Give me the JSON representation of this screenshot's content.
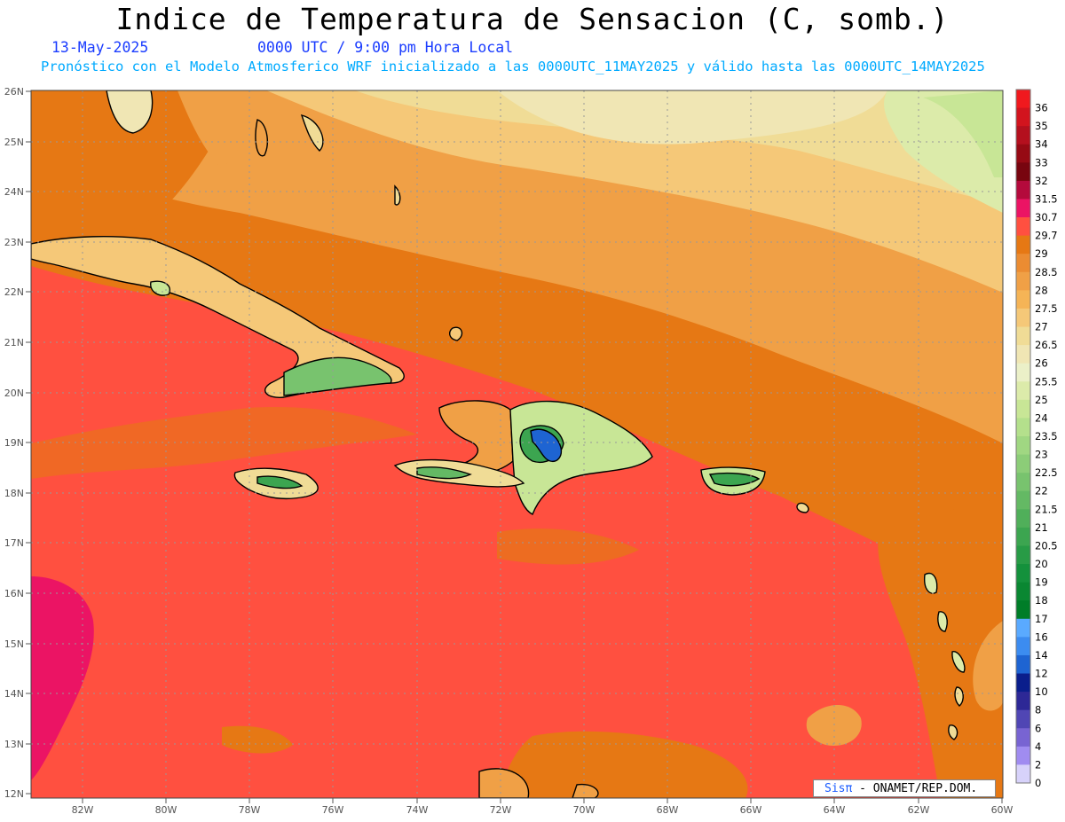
{
  "title": "Indice de Temperatura de Sensacion (C, somb.)",
  "date": "13-May-2025",
  "time": "0000 UTC / 9:00 pm Hora Local",
  "model_info": "Pronóstico con el Modelo Atmosferico WRF inicializado a las 0000UTC_11MAY2025 y válido hasta las  0000UTC_14MAY2025",
  "credit": {
    "brand": "Sisπ",
    "text": " - ONAMET/REP.DOM."
  },
  "lat_labels": [
    "26N",
    "25N",
    "24N",
    "23N",
    "22N",
    "21N",
    "20N",
    "19N",
    "18N",
    "17N",
    "16N",
    "15N",
    "14N",
    "13N",
    "12N"
  ],
  "lon_labels": [
    "82W",
    "80W",
    "78W",
    "76W",
    "74W",
    "72W",
    "70W",
    "68W",
    "66W",
    "64W",
    "62W",
    "60W"
  ],
  "legend": [
    {
      "label": "36",
      "color": "#f0191e"
    },
    {
      "label": "35",
      "color": "#d2141e"
    },
    {
      "label": "34",
      "color": "#b4101e"
    },
    {
      "label": "33",
      "color": "#960a14"
    },
    {
      "label": "32",
      "color": "#78050f"
    },
    {
      "label": "31.5",
      "color": "#b40a3c"
    },
    {
      "label": "30.7",
      "color": "#eb1464"
    },
    {
      "label": "29.7",
      "color": "#ff5040"
    },
    {
      "label": "29",
      "color": "#e67814"
    },
    {
      "label": "28.5",
      "color": "#eb8c32"
    },
    {
      "label": "28",
      "color": "#f0a046"
    },
    {
      "label": "27.5",
      "color": "#f5b456"
    },
    {
      "label": "27",
      "color": "#f5c878"
    },
    {
      "label": "26.5",
      "color": "#f0dc96"
    },
    {
      "label": "26",
      "color": "#f0e6b4"
    },
    {
      "label": "25.5",
      "color": "#ebf0c8"
    },
    {
      "label": "25",
      "color": "#dcebaa"
    },
    {
      "label": "24",
      "color": "#c8e696"
    },
    {
      "label": "23.5",
      "color": "#b4e08c"
    },
    {
      "label": "23",
      "color": "#a0d782"
    },
    {
      "label": "22.5",
      "color": "#8ccd78"
    },
    {
      "label": "22",
      "color": "#78c36e"
    },
    {
      "label": "21.5",
      "color": "#64b964"
    },
    {
      "label": "21",
      "color": "#50af5a"
    },
    {
      "label": "20.5",
      "color": "#3ca550"
    },
    {
      "label": "20",
      "color": "#289b46"
    },
    {
      "label": "19",
      "color": "#14913c"
    },
    {
      "label": "18",
      "color": "#0a8732"
    },
    {
      "label": "17",
      "color": "#007d28"
    },
    {
      "label": "16",
      "color": "#5aaaff"
    },
    {
      "label": "14",
      "color": "#3c8cf0"
    },
    {
      "label": "12",
      "color": "#1e64d2"
    },
    {
      "label": "10",
      "color": "#0a1e8c"
    },
    {
      "label": "8",
      "color": "#2d2896"
    },
    {
      "label": "6",
      "color": "#5046b4"
    },
    {
      "label": "4",
      "color": "#7864d2"
    },
    {
      "label": "2",
      "color": "#a08cf0"
    },
    {
      "label": "0",
      "color": "#d7d2fa"
    }
  ]
}
